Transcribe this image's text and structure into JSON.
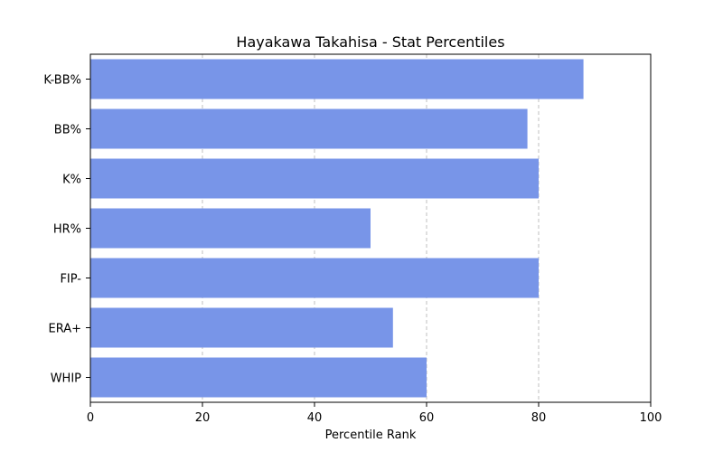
{
  "chart_data": {
    "type": "bar",
    "orientation": "horizontal",
    "title": "Hayakawa Takahisa - Stat Percentiles",
    "xlabel": "Percentile Rank",
    "ylabel": "",
    "categories": [
      "K-BB%",
      "BB%",
      "K%",
      "HR%",
      "FIP-",
      "ERA+",
      "WHIP"
    ],
    "values": [
      88,
      78,
      80,
      50,
      80,
      54,
      60
    ],
    "xlim": [
      0,
      100
    ],
    "xticks": [
      "0",
      "20",
      "40",
      "60",
      "80",
      "100"
    ],
    "grid": "vertical dashed",
    "bar_color": "#7895e8"
  }
}
